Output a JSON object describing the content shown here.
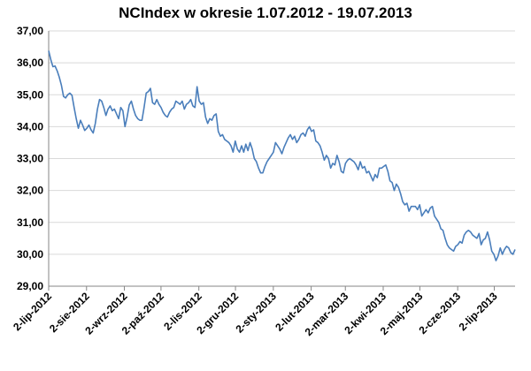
{
  "chart_data": {
    "type": "line",
    "title": "NCIndex w okresie 1.07.2012 - 19.07.2013",
    "xlabel": "",
    "ylabel": "",
    "ylim": [
      29.0,
      37.0
    ],
    "yticks": [
      "29,00",
      "30,00",
      "31,00",
      "32,00",
      "33,00",
      "34,00",
      "35,00",
      "36,00",
      "37,00"
    ],
    "xticks": [
      "2-lip-2012",
      "2-sie-2012",
      "2-wrz-2012",
      "2-paź-2012",
      "2-lis-2012",
      "2-gru-2012",
      "2-sty-2013",
      "2-lut-2013",
      "2-mar-2013",
      "2-kwi-2013",
      "2-maj-2013",
      "2-cze-2013",
      "2-lip-2013"
    ],
    "grid": "horizontal",
    "legend": "none",
    "colors": {
      "line": "#4a7ebb",
      "grid": "#d9d9d9",
      "axis": "#868686"
    },
    "series": [
      {
        "values": [
          36.38,
          36.1,
          35.88,
          35.9,
          35.75,
          35.55,
          35.3,
          34.95,
          34.9,
          35.0,
          35.05,
          34.98,
          34.6,
          34.25,
          33.95,
          34.2,
          34.05,
          33.88,
          33.95,
          34.05,
          33.9,
          33.8,
          34.1,
          34.55,
          34.85,
          34.8,
          34.6,
          34.35,
          34.55,
          34.65,
          34.5,
          34.55,
          34.4,
          34.25,
          34.6,
          34.5,
          34.0,
          34.3,
          34.68,
          34.8,
          34.55,
          34.35,
          34.25,
          34.2,
          34.2,
          34.6,
          35.05,
          35.1,
          35.2,
          34.75,
          34.7,
          34.85,
          34.7,
          34.6,
          34.45,
          34.35,
          34.3,
          34.45,
          34.55,
          34.6,
          34.8,
          34.75,
          34.7,
          34.8,
          34.55,
          34.7,
          34.75,
          34.85,
          34.65,
          34.6,
          35.25,
          34.8,
          34.7,
          34.75,
          34.3,
          34.1,
          34.25,
          34.2,
          34.35,
          34.4,
          33.85,
          33.7,
          33.75,
          33.6,
          33.55,
          33.5,
          33.4,
          33.2,
          33.55,
          33.3,
          33.2,
          33.4,
          33.2,
          33.45,
          33.25,
          33.5,
          33.3,
          33.0,
          32.9,
          32.7,
          32.55,
          32.55,
          32.75,
          32.9,
          33.0,
          33.1,
          33.2,
          33.5,
          33.4,
          33.3,
          33.15,
          33.35,
          33.5,
          33.65,
          33.75,
          33.6,
          33.7,
          33.5,
          33.6,
          33.75,
          33.8,
          33.7,
          33.9,
          34.0,
          33.85,
          33.9,
          33.55,
          33.5,
          33.4,
          33.2,
          32.95,
          33.1,
          33.0,
          32.7,
          32.85,
          32.8,
          33.1,
          32.9,
          32.6,
          32.55,
          32.85,
          32.95,
          33.0,
          32.95,
          32.9,
          32.8,
          32.65,
          32.9,
          32.7,
          32.75,
          32.55,
          32.6,
          32.45,
          32.3,
          32.5,
          32.4,
          32.7,
          32.7,
          32.75,
          32.8,
          32.6,
          32.3,
          32.25,
          32.0,
          32.2,
          32.1,
          31.9,
          31.65,
          31.55,
          31.6,
          31.35,
          31.5,
          31.5,
          31.5,
          31.4,
          31.55,
          31.2,
          31.3,
          31.4,
          31.3,
          31.45,
          31.5,
          31.2,
          31.1,
          31.0,
          30.8,
          30.75,
          30.5,
          30.3,
          30.2,
          30.15,
          30.1,
          30.25,
          30.3,
          30.4,
          30.35,
          30.6,
          30.7,
          30.75,
          30.7,
          30.6,
          30.55,
          30.5,
          30.65,
          30.3,
          30.45,
          30.5,
          30.7,
          30.45,
          30.1,
          30.0,
          29.8,
          29.95,
          30.2,
          30.0,
          30.15,
          30.25,
          30.2,
          30.05,
          30.0,
          30.15
        ]
      }
    ]
  }
}
